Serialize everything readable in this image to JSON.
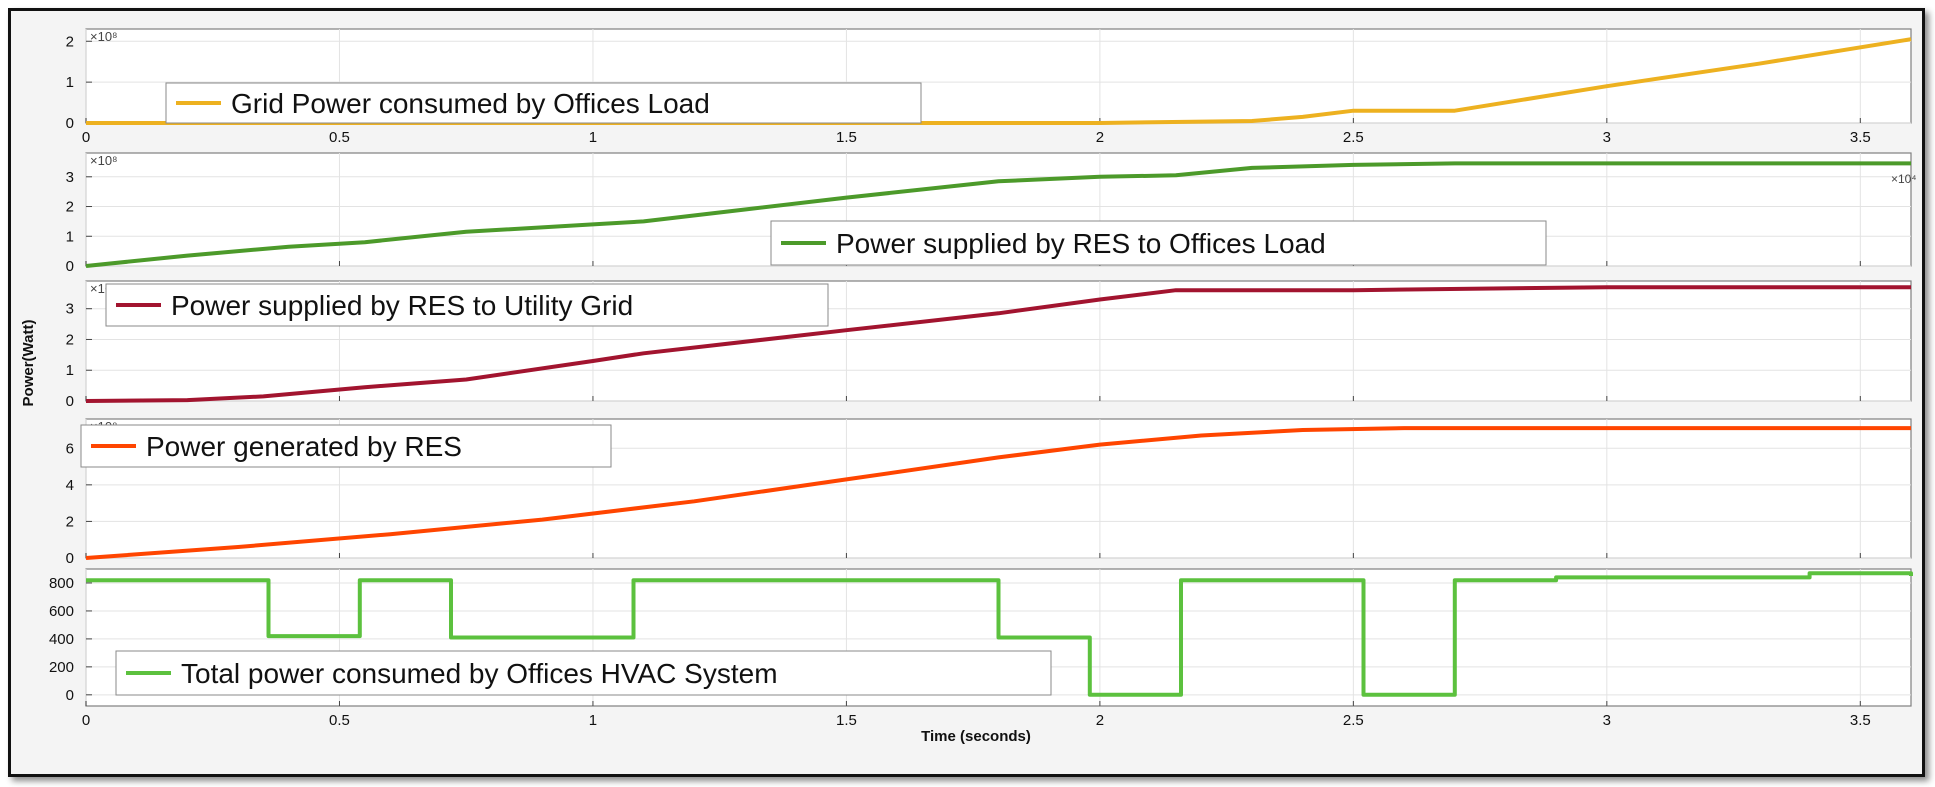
{
  "chart_data": {
    "type": "line",
    "ylabel": "Power(Watt)",
    "xlabel": "Time (seconds)",
    "xlim": [
      0,
      3.6
    ],
    "grid": true,
    "x_ticks": [
      0,
      0.5,
      1,
      1.5,
      2,
      2.5,
      3,
      3.5
    ],
    "x_tick_labels": [
      "0",
      "0.5",
      "1",
      "1.5",
      "2",
      "2.5",
      "3",
      "3.5"
    ],
    "x_exponent_label": "×10⁴",
    "panels": [
      {
        "name": "grid-power",
        "exponent_label": "×10⁸",
        "ylim": [
          0,
          2.3
        ],
        "y_ticks": [
          0,
          1,
          2
        ],
        "y_tick_labels": [
          "0",
          "1",
          "2"
        ],
        "show_x_ticks": true,
        "series": [
          {
            "name": "Grid Power consumed by Offices Load",
            "color": "#EDB120",
            "x": [
              0,
              0.5,
              1,
              1.5,
              2,
              2.3,
              2.4,
              2.5,
              2.7,
              3.0,
              3.3,
              3.6
            ],
            "y": [
              0,
              0,
              0,
              0,
              0,
              0.05,
              0.15,
              0.3,
              0.3,
              0.9,
              1.45,
              2.05
            ]
          }
        ]
      },
      {
        "name": "res-to-offices",
        "exponent_label": "×10⁸",
        "ylim": [
          0,
          3.8
        ],
        "y_ticks": [
          0,
          1,
          2,
          3
        ],
        "y_tick_labels": [
          "0",
          "1",
          "2",
          "3"
        ],
        "show_x_ticks": false,
        "series": [
          {
            "name": "Power supplied by RES to Offices Load",
            "color": "#4C9A2A",
            "x": [
              0,
              0.2,
              0.4,
              0.55,
              0.75,
              1.0,
              1.1,
              1.3,
              1.5,
              1.8,
              2.0,
              2.15,
              2.3,
              2.5,
              2.7,
              3.0,
              3.3,
              3.6
            ],
            "y": [
              0,
              0.35,
              0.65,
              0.8,
              1.15,
              1.4,
              1.5,
              1.9,
              2.3,
              2.85,
              3.0,
              3.05,
              3.3,
              3.4,
              3.45,
              3.45,
              3.45,
              3.45
            ]
          }
        ]
      },
      {
        "name": "res-to-grid",
        "exponent_label": "×10⁸",
        "ylim": [
          0,
          3.9
        ],
        "y_ticks": [
          0,
          1,
          2,
          3
        ],
        "y_tick_labels": [
          "0",
          "1",
          "2",
          "3"
        ],
        "show_x_ticks": false,
        "series": [
          {
            "name": "Power supplied by RES to Utility Grid",
            "color": "#A2142F",
            "x": [
              0,
              0.2,
              0.35,
              0.55,
              0.75,
              1.0,
              1.1,
              1.5,
              1.8,
              2.0,
              2.15,
              2.5,
              3.0,
              3.6
            ],
            "y": [
              0,
              0.03,
              0.15,
              0.45,
              0.7,
              1.3,
              1.55,
              2.3,
              2.85,
              3.3,
              3.6,
              3.6,
              3.7,
              3.7
            ]
          }
        ]
      },
      {
        "name": "res-generated",
        "exponent_label": "×10⁸",
        "ylim": [
          0,
          7.6
        ],
        "y_ticks": [
          0,
          2,
          4,
          6
        ],
        "y_tick_labels": [
          "0",
          "2",
          "4",
          "6"
        ],
        "show_x_ticks": false,
        "series": [
          {
            "name": "Power generated by RES",
            "color": "#FF4500",
            "x": [
              0,
              0.3,
              0.6,
              0.9,
              1.2,
              1.5,
              1.8,
              2.0,
              2.2,
              2.4,
              2.6,
              3.0,
              3.6
            ],
            "y": [
              0,
              0.6,
              1.3,
              2.1,
              3.1,
              4.3,
              5.5,
              6.2,
              6.7,
              7.0,
              7.1,
              7.1,
              7.1
            ]
          }
        ]
      },
      {
        "name": "hvac-consumption",
        "exponent_label": "",
        "ylim": [
          -80,
          900
        ],
        "y_ticks": [
          0,
          200,
          400,
          600,
          800
        ],
        "y_tick_labels": [
          "0",
          "200",
          "400",
          "600",
          "800"
        ],
        "show_x_ticks": true,
        "series": [
          {
            "name": "Total power consumed by Offices HVAC System",
            "color": "#5CC13E",
            "step": true,
            "x": [
              0,
              0.36,
              0.54,
              0.72,
              1.08,
              1.8,
              1.98,
              2.16,
              2.52,
              2.7,
              2.9,
              3.4,
              3.6
            ],
            "y": [
              820,
              420,
              820,
              410,
              820,
              410,
              0,
              820,
              0,
              820,
              840,
              870,
              850
            ]
          }
        ]
      }
    ]
  }
}
